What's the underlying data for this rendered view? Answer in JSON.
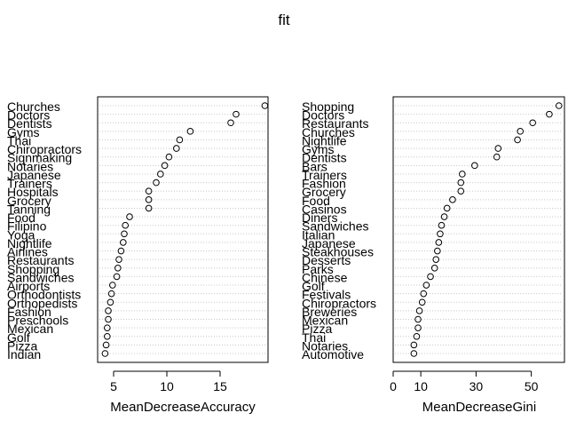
{
  "figure": {
    "title": "fit"
  },
  "chart_data": [
    {
      "type": "scatter",
      "style": "dotchart",
      "xlabel": "MeanDecreaseAccuracy",
      "ylabel": "",
      "xlim": [
        3.5,
        19.5
      ],
      "xticks": [
        5,
        10,
        15
      ],
      "grid": "dotted horizontal guide per row",
      "categories": [
        "Churches",
        "Doctors",
        "Dentists",
        "Gyms",
        "Thai",
        "Chiropractors",
        "Signmaking",
        "Notaries",
        "Japanese",
        "Trainers",
        "Hospitals",
        "Grocery",
        "Tanning",
        "Food",
        "Filipino",
        "Yoga",
        "Nightlife",
        "Airlines",
        "Restaurants",
        "Shopping",
        "Sandwiches",
        "Airports",
        "Orthodontists",
        "Orthopedists",
        "Fashion",
        "Preschools",
        "Mexican",
        "Golf",
        "Pizza",
        "Indian"
      ],
      "values": [
        19.2,
        16.5,
        16.0,
        12.2,
        11.2,
        10.9,
        10.2,
        9.8,
        9.4,
        9.0,
        8.3,
        8.3,
        8.3,
        6.5,
        6.1,
        6.0,
        5.9,
        5.7,
        5.5,
        5.4,
        5.3,
        4.9,
        4.8,
        4.7,
        4.5,
        4.5,
        4.4,
        4.4,
        4.3,
        4.2
      ]
    },
    {
      "type": "scatter",
      "style": "dotchart",
      "xlabel": "MeanDecreaseGini",
      "ylabel": "",
      "xlim": [
        0,
        62
      ],
      "xticks": [
        0,
        10,
        30,
        50
      ],
      "grid": "dotted horizontal guide per row",
      "categories": [
        "Shopping",
        "Doctors",
        "Restaurants",
        "Churches",
        "Nightlife",
        "Gyms",
        "Dentists",
        "Bars",
        "Trainers",
        "Fashion",
        "Grocery",
        "Food",
        "Casinos",
        "Diners",
        "Sandwiches",
        "Italian",
        "Japanese",
        "Steakhouses",
        "Desserts",
        "Parks",
        "Chinese",
        "Golf",
        "Festivals",
        "Chiropractors",
        "Breweries",
        "Mexican",
        "Pizza",
        "Thai",
        "Notaries",
        "Automotive"
      ],
      "values": [
        60.0,
        56.5,
        50.5,
        46.0,
        45.0,
        38.0,
        37.5,
        29.5,
        25.0,
        24.5,
        24.5,
        21.5,
        19.5,
        18.5,
        17.5,
        17.0,
        16.5,
        16.0,
        15.5,
        15.0,
        13.5,
        12.0,
        11.0,
        10.5,
        9.5,
        9.0,
        9.0,
        8.5,
        7.5,
        7.5
      ]
    }
  ]
}
